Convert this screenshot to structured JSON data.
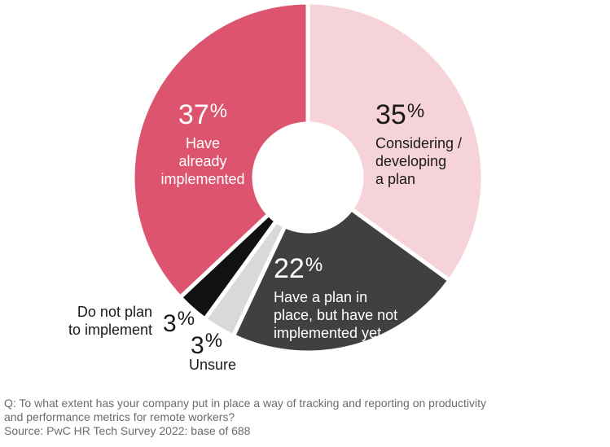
{
  "chart_data": {
    "type": "pie",
    "variant": "donut",
    "slices": [
      {
        "key": "considering",
        "value": 35,
        "label": "Considering /\ndeveloping\na plan",
        "color": "#f6d3d9"
      },
      {
        "key": "plan_not_implemented",
        "value": 22,
        "label": "Have a plan in\nplace, but have not\nimplemented yet",
        "color": "#404040"
      },
      {
        "key": "unsure",
        "value": 3,
        "label": "Unsure",
        "color": "#d9d9d9"
      },
      {
        "key": "do_not_plan",
        "value": 3,
        "label": "Do not plan\nto implement",
        "color": "#111111"
      },
      {
        "key": "implemented",
        "value": 37,
        "label": "Have already\nimplemented",
        "color": "#dc546e"
      }
    ],
    "percent_sign": "%"
  },
  "footer": {
    "question_line1": "Q: To what extent has your company put in place a way of tracking and reporting on productivity",
    "question_line2": "and performance metrics for remote workers?",
    "source": "Source: PwC HR Tech Survey 2022: base of 688"
  }
}
